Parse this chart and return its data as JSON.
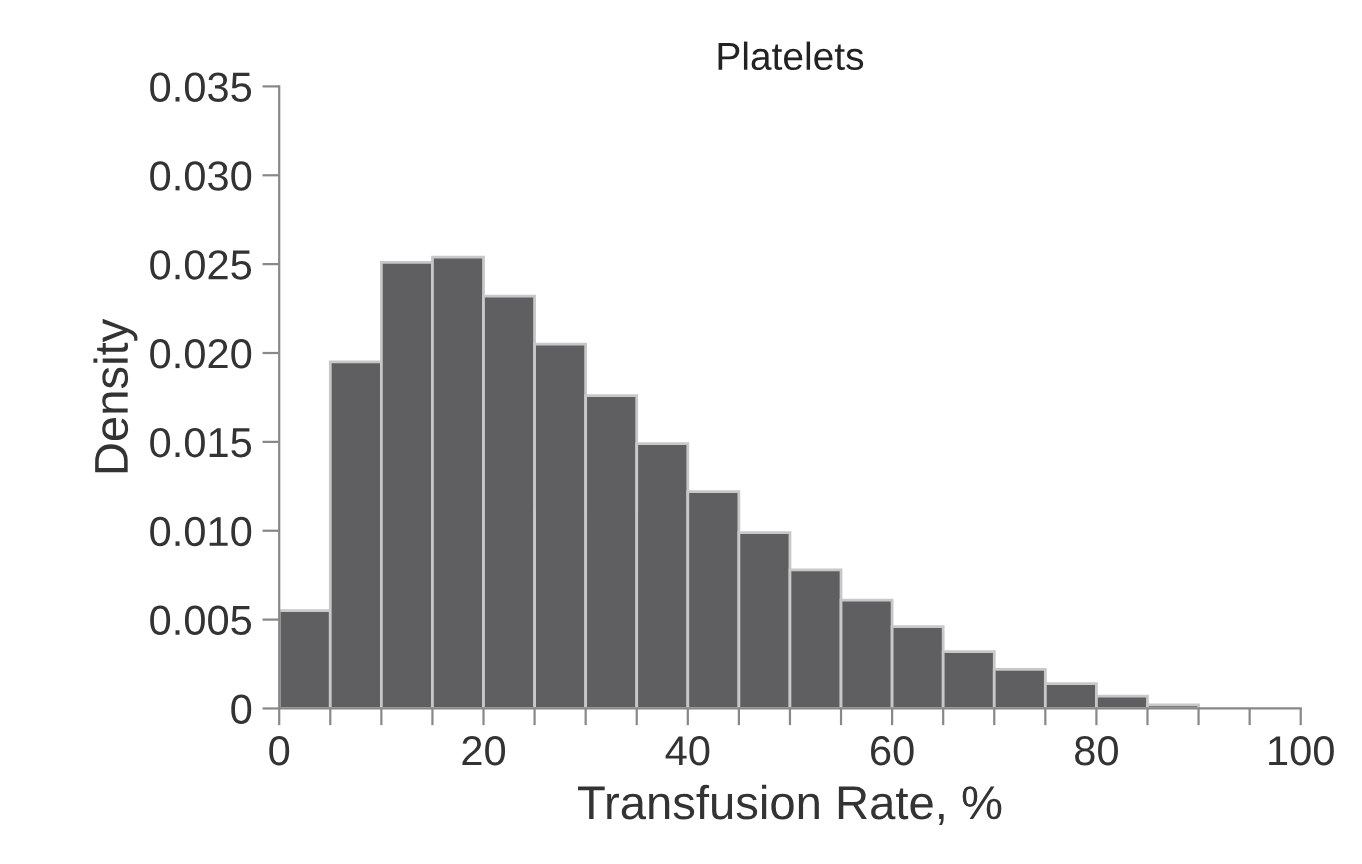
{
  "chart_data": {
    "type": "histogram",
    "title": "Platelets",
    "xlabel": "Transfusion Rate, %",
    "ylabel": "Density",
    "bins": [
      0,
      5,
      10,
      15,
      20,
      25,
      30,
      35,
      40,
      45,
      50,
      55,
      60,
      65,
      70,
      75,
      80,
      85,
      90
    ],
    "values": [
      0.0055,
      0.0195,
      0.0251,
      0.0254,
      0.0232,
      0.0205,
      0.0176,
      0.0149,
      0.0122,
      0.0099,
      0.0078,
      0.0061,
      0.0046,
      0.0032,
      0.0022,
      0.0014,
      0.0007,
      0.0002
    ],
    "color": "#5f5f61",
    "xlim": [
      0,
      100
    ],
    "xticks": [
      0,
      {
        "value": 5,
        "label": null
      },
      {
        "value": 10,
        "label": null
      },
      {
        "value": 15,
        "label": null
      },
      20,
      {
        "value": 25,
        "label": null
      },
      {
        "value": 30,
        "label": null
      },
      {
        "value": 35,
        "label": null
      },
      40,
      {
        "value": 45,
        "label": null
      },
      {
        "value": 50,
        "label": null
      },
      {
        "value": 55,
        "label": null
      },
      60,
      {
        "value": 65,
        "label": null
      },
      {
        "value": 70,
        "label": null
      },
      {
        "value": 75,
        "label": null
      },
      80,
      {
        "value": 85,
        "label": null
      },
      {
        "value": 90,
        "label": null
      },
      {
        "value": 95,
        "label": null
      },
      100
    ],
    "ylim": [
      0,
      0.035
    ],
    "yticks": [
      0,
      {
        "value": 0.005,
        "label": "0.005"
      },
      {
        "value": 0.01,
        "label": "0.010"
      },
      {
        "value": 0.015,
        "label": "0.015"
      },
      {
        "value": 0.02,
        "label": "0.020"
      },
      {
        "value": 0.025,
        "label": "0.025"
      },
      {
        "value": 0.03,
        "label": "0.030"
      },
      {
        "value": 0.035,
        "label": "0.035"
      }
    ],
    "grid": false,
    "legend": false
  }
}
